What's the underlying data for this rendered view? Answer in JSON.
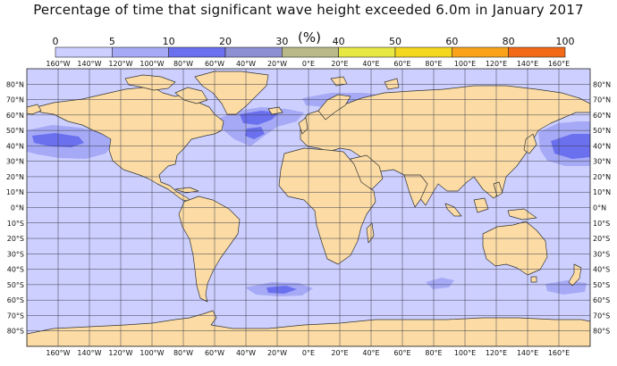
{
  "title": "Percentage of time that significant wave height exceeded 6.0m in January 2017",
  "colorbar": {
    "unit": "(%)",
    "ticks": [
      "0",
      "5",
      "10",
      "20",
      "30",
      "40",
      "50",
      "60",
      "80",
      "100"
    ],
    "colors": [
      "#cdd0ff",
      "#a6aaf6",
      "#6a70ee",
      "#8e90d4",
      "#b9b98a",
      "#e8e845",
      "#f4d820",
      "#f9a21a",
      "#f26a18"
    ]
  },
  "longitude_labels": [
    "160°W",
    "140°W",
    "120°W",
    "100°W",
    "80°W",
    "60°W",
    "40°W",
    "20°W",
    "0°E",
    "20°E",
    "40°E",
    "60°E",
    "80°E",
    "100°E",
    "120°E",
    "140°E",
    "160°E"
  ],
  "latitude_labels": [
    "80°N",
    "70°N",
    "60°N",
    "50°N",
    "40°N",
    "30°N",
    "20°N",
    "10°N",
    "0°N",
    "10°S",
    "20°S",
    "30°S",
    "40°S",
    "50°S",
    "60°S",
    "70°S",
    "80°S"
  ],
  "map": {
    "ocean_color": "#cdd0ff",
    "land_color": "#fcdca4",
    "regions": [
      {
        "name": "North Pacific",
        "level": "5-10%",
        "extra": "10-20% core"
      },
      {
        "name": "North Atlantic",
        "level": "5-10%",
        "extra": "10-20% core"
      },
      {
        "name": "Barents / Norwegian Sea",
        "level": "5-10%"
      },
      {
        "name": "Southern Ocean south of Africa",
        "level": "5-10%"
      },
      {
        "name": "Southern Ocean south of Australia",
        "level": "5-10%"
      },
      {
        "name": "Southern Ocean south of New Zealand",
        "level": "5-10%"
      }
    ]
  }
}
